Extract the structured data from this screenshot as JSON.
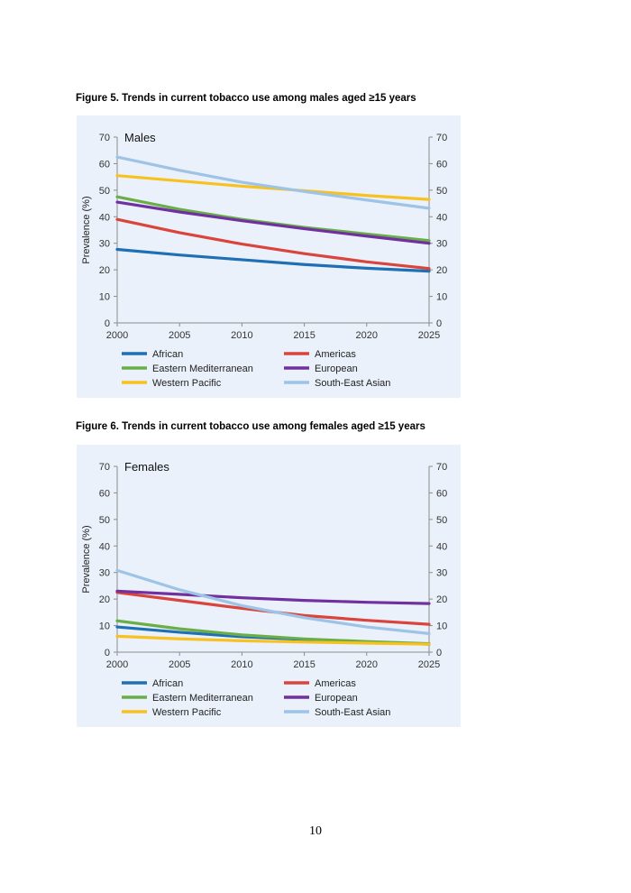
{
  "document": {
    "caption_fig5": "Figure 5. Trends in current tobacco use among males aged ≥15 years",
    "caption_fig6": "Figure 6. Trends in current tobacco use among females aged ≥15 years",
    "page_number": "10"
  },
  "chart_data": [
    {
      "type": "line",
      "title": "Males",
      "ylabel": "Prevalence (%)",
      "xlabel": "",
      "xlim": [
        2000,
        2025
      ],
      "ylim": [
        0,
        70
      ],
      "x_ticks": [
        "2000",
        "2005",
        "2010",
        "2015",
        "2020",
        "2025"
      ],
      "y_ticks": [
        "0",
        "10",
        "20",
        "30",
        "40",
        "50",
        "60",
        "70"
      ],
      "right_axis": true,
      "grid": false,
      "legend_position": "bottom",
      "x": [
        2000,
        2005,
        2010,
        2015,
        2020,
        2025
      ],
      "series": [
        {
          "name": "African",
          "color": "#1f6fb5",
          "values": [
            27.7,
            25.6,
            23.8,
            22.0,
            20.6,
            19.5
          ]
        },
        {
          "name": "Americas",
          "color": "#d9443c",
          "values": [
            39.0,
            34.0,
            29.7,
            26.1,
            23.0,
            20.5
          ]
        },
        {
          "name": "Eastern Mediterranean",
          "color": "#6aae48",
          "values": [
            47.5,
            42.8,
            39.0,
            36.0,
            33.5,
            31.0
          ]
        },
        {
          "name": "European",
          "color": "#7030a0",
          "values": [
            45.5,
            41.8,
            38.5,
            35.5,
            32.7,
            30.0
          ]
        },
        {
          "name": "Western Pacific",
          "color": "#f7c11f",
          "values": [
            55.5,
            53.5,
            51.5,
            49.8,
            48.0,
            46.5
          ]
        },
        {
          "name": "South-East Asian",
          "color": "#9dc3e6",
          "values": [
            62.5,
            57.5,
            53.0,
            49.5,
            46.3,
            43.2
          ]
        }
      ]
    },
    {
      "type": "line",
      "title": "Females",
      "ylabel": "Prevalence (%)",
      "xlabel": "",
      "xlim": [
        2000,
        2025
      ],
      "ylim": [
        0,
        70
      ],
      "x_ticks": [
        "2000",
        "2005",
        "2010",
        "2015",
        "2020",
        "2025"
      ],
      "y_ticks": [
        "0",
        "10",
        "20",
        "30",
        "40",
        "50",
        "60",
        "70"
      ],
      "right_axis": true,
      "grid": false,
      "legend_position": "bottom",
      "x": [
        2000,
        2005,
        2010,
        2015,
        2020,
        2025
      ],
      "series": [
        {
          "name": "African",
          "color": "#1f6fb5",
          "values": [
            9.5,
            7.5,
            5.8,
            4.8,
            3.8,
            3.0
          ]
        },
        {
          "name": "Americas",
          "color": "#d9443c",
          "values": [
            22.5,
            19.5,
            16.5,
            13.8,
            12.0,
            10.5
          ]
        },
        {
          "name": "Eastern Mediterranean",
          "color": "#6aae48",
          "values": [
            11.8,
            8.8,
            6.5,
            5.0,
            4.0,
            3.2
          ]
        },
        {
          "name": "European",
          "color": "#7030a0",
          "values": [
            23.0,
            21.8,
            20.5,
            19.5,
            18.8,
            18.3
          ]
        },
        {
          "name": "Western Pacific",
          "color": "#f7c11f",
          "values": [
            6.0,
            5.0,
            4.3,
            3.8,
            3.4,
            3.0
          ]
        },
        {
          "name": "South-East Asian",
          "color": "#9dc3e6",
          "values": [
            30.8,
            23.5,
            17.5,
            13.0,
            9.5,
            7.0
          ]
        }
      ]
    }
  ]
}
